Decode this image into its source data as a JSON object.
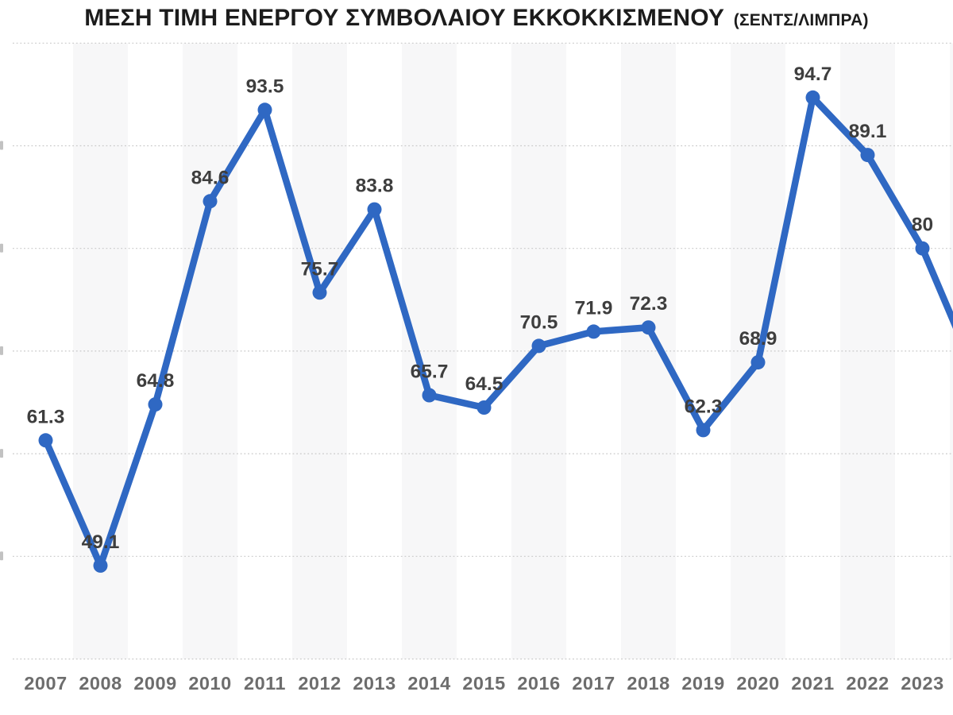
{
  "header": {
    "title": "ΜΕΣΗ ΤΙΜΗ ΕΝΕΡΓΟΥ ΣΥΜΒΟΛΑΙΟΥ ΕΚΚΟΚΚΙΣΜΕΝΟΥ",
    "unit_label": "(ΣΕΝΤΣ/ΛΙΜΠΡΑ)"
  },
  "colors": {
    "line": "#2F68C3",
    "marker": "#2F68C3",
    "value_label": "#3E3E3E",
    "axis_label": "#6D6D6D",
    "gridline": "#C9C9C9",
    "band": "#F7F7F8",
    "cropped_label_fragment": "#C2C2C2",
    "title": "#1C1C1C",
    "background": "#FFFFFF"
  },
  "chart_data": {
    "type": "line",
    "title": "ΜΕΣΗ ΤΙΜΗ ΕΝΕΡΓΟΥ ΣΥΜΒΟΛΑΙΟΥ ΕΚΚΟΚΚΙΣΜΕΝΟΥ (ΣΕΝΤΣ/ΛΙΜΠΡΑ)",
    "xlabel": "",
    "ylabel": "",
    "categories": [
      "2007",
      "2008",
      "2009",
      "2010",
      "2011",
      "2012",
      "2013",
      "2014",
      "2015",
      "2016",
      "2017",
      "2018",
      "2019",
      "2020",
      "2021",
      "2022",
      "2023"
    ],
    "values": [
      61.3,
      49.1,
      64.8,
      84.6,
      93.5,
      75.7,
      83.8,
      65.7,
      64.5,
      70.5,
      71.9,
      72.3,
      62.3,
      68.9,
      94.7,
      89.1,
      80
    ],
    "ylim": [
      40,
      100
    ],
    "y_grid_step": 10,
    "grid": "horizontal dotted",
    "legend": "none",
    "data_labels": "bold values above each point",
    "background_bands": "alternating light-gray column band on even years (2008, 2010, ... 2022, partial 2024)",
    "y_axis_cropped_left": true,
    "left_edge_tick_remnants": [
      90,
      80,
      70,
      60,
      50
    ],
    "line_exit_value_at_right_edge": 73
  }
}
